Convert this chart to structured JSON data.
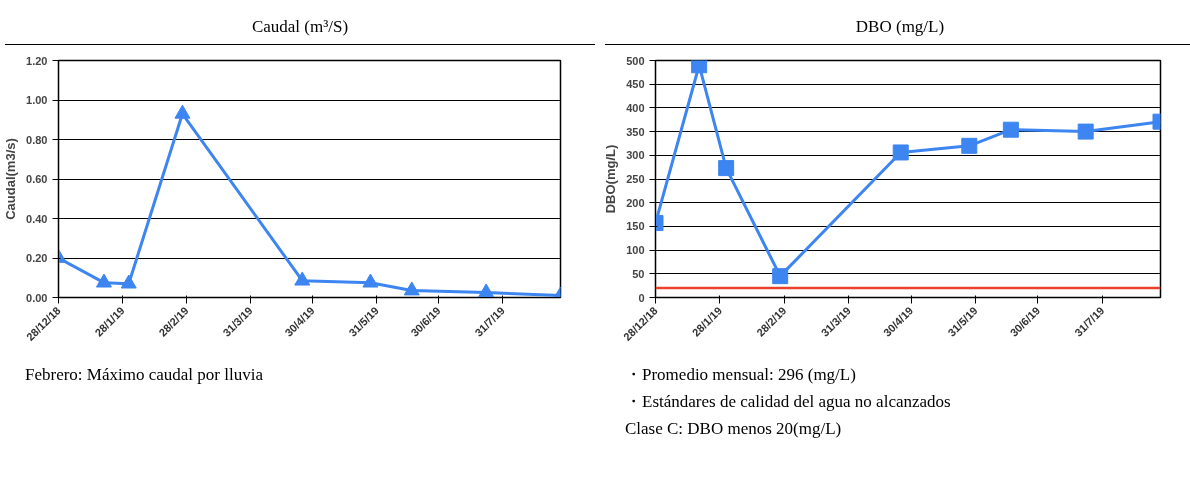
{
  "chart_data": [
    {
      "type": "line",
      "title": "Caudal (m³/S)",
      "ylabel": "Caudal(m3/s)",
      "marker": "triangle",
      "line_style": "solid",
      "grid": "y",
      "x": [
        "2018-12-28",
        "2019-01-19",
        "2019-01-31",
        "2019-02-26",
        "2019-04-25",
        "2019-05-28",
        "2019-06-17",
        "2019-07-23",
        "2019-08-28"
      ],
      "series": [
        {
          "color": "#3d85f0",
          "values": [
            0.2,
            0.075,
            0.07,
            0.93,
            0.085,
            0.075,
            0.035,
            0.025,
            0.01
          ]
        }
      ],
      "xlim": [
        "2018-12-28",
        "2019-08-28"
      ],
      "xticks": [
        {
          "value": "2018-12-28",
          "label": "28/12/18"
        },
        {
          "value": "2019-01-28",
          "label": "28/1/19"
        },
        {
          "value": "2019-02-28",
          "label": "28/2/19"
        },
        {
          "value": "2019-03-31",
          "label": "31/3/19"
        },
        {
          "value": "2019-04-30",
          "label": "30/4/19"
        },
        {
          "value": "2019-05-31",
          "label": "31/5/19"
        },
        {
          "value": "2019-06-30",
          "label": "30/6/19"
        },
        {
          "value": "2019-07-31",
          "label": "31/7/19"
        }
      ],
      "ylim": [
        0,
        1.2
      ],
      "yticks": [
        {
          "value": 0,
          "label": "0.00"
        },
        {
          "value": 0.2,
          "label": "0.20"
        },
        {
          "value": 0.4,
          "label": "0.40"
        },
        {
          "value": 0.6,
          "label": "0.60"
        },
        {
          "value": 0.8,
          "label": "0.80"
        },
        {
          "value": 1.0,
          "label": "1.00"
        },
        {
          "value": 1.2,
          "label": "1.20"
        }
      ],
      "annotations": [
        "Febrero: Máximo caudal por lluvia"
      ]
    },
    {
      "type": "line",
      "title": "DBO (mg/L)",
      "ylabel": "DBO(mg/L)",
      "marker": "square",
      "line_style": "solid",
      "grid": "y",
      "x": [
        "2018-12-28",
        "2019-01-18",
        "2019-01-31",
        "2019-02-26",
        "2019-04-25",
        "2019-05-28",
        "2019-06-17",
        "2019-07-23",
        "2019-08-28"
      ],
      "series": [
        {
          "color": "#3d85f0",
          "values": [
            157,
            490,
            273,
            45,
            306,
            320,
            354,
            350,
            371
          ]
        }
      ],
      "xlim": [
        "2018-12-28",
        "2019-08-28"
      ],
      "xticks": [
        {
          "value": "2018-12-28",
          "label": "28/12/18"
        },
        {
          "value": "2019-01-28",
          "label": "28/1/19"
        },
        {
          "value": "2019-02-28",
          "label": "28/2/19"
        },
        {
          "value": "2019-03-31",
          "label": "31/3/19"
        },
        {
          "value": "2019-04-30",
          "label": "30/4/19"
        },
        {
          "value": "2019-05-31",
          "label": "31/5/19"
        },
        {
          "value": "2019-06-30",
          "label": "30/6/19"
        },
        {
          "value": "2019-07-31",
          "label": "31/7/19"
        }
      ],
      "ylim": [
        0,
        500
      ],
      "yticks": [
        0,
        50,
        100,
        150,
        200,
        250,
        300,
        350,
        400,
        450,
        500
      ],
      "ref_lines": [
        {
          "axis": "y",
          "value": 20,
          "color": "#e8412c"
        }
      ],
      "annotations": [
        "・Promedio mensual: 296 (mg/L)",
        "・Estándares de calidad del agua no alcanzados",
        "Clase C: DBO menos 20(mg/L)"
      ]
    }
  ]
}
